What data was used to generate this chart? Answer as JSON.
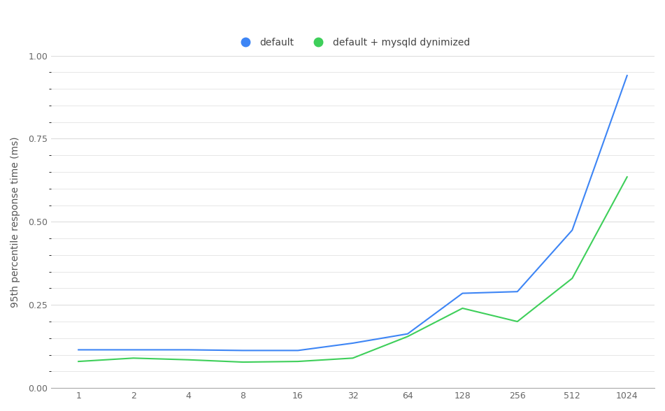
{
  "x_labels": [
    "1",
    "2",
    "4",
    "8",
    "16",
    "32",
    "64",
    "128",
    "256",
    "512",
    "1024"
  ],
  "x_positions": [
    0,
    1,
    2,
    3,
    4,
    5,
    6,
    7,
    8,
    9,
    10
  ],
  "series": [
    {
      "label": "default",
      "color": "#3d85f5",
      "values": [
        0.115,
        0.115,
        0.115,
        0.113,
        0.113,
        0.135,
        0.163,
        0.285,
        0.29,
        0.475,
        0.94
      ]
    },
    {
      "label": "default + mysqld dynimized",
      "color": "#3ecf5a",
      "values": [
        0.08,
        0.09,
        0.085,
        0.078,
        0.08,
        0.09,
        0.155,
        0.24,
        0.2,
        0.33,
        0.635
      ]
    }
  ],
  "ylabel": "95th percentile response time (ms)",
  "ylim": [
    0.0,
    1.0
  ],
  "yticks": [
    0.0,
    0.25,
    0.5,
    0.75,
    1.0
  ],
  "background_color": "#ffffff",
  "grid_color": "#dddddd",
  "axis_label_fontsize": 10,
  "tick_fontsize": 9,
  "legend_fontsize": 10
}
